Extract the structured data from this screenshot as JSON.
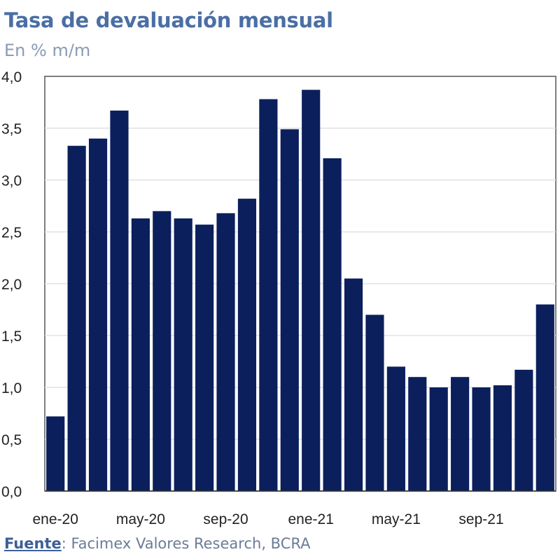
{
  "title": "Tasa de devaluación mensual",
  "subtitle": "En % m/m",
  "source": {
    "label": "Fuente",
    "text": ": Facimex Valores Research, BCRA"
  },
  "chart_data": {
    "type": "bar",
    "title": "Tasa de devaluación mensual",
    "ylabel": "",
    "xlabel": "",
    "ylim": [
      0,
      4
    ],
    "yticks": [
      "0,0",
      "0,5",
      "1,0",
      "1,5",
      "2,0",
      "2,5",
      "3,0",
      "3,5",
      "4,0"
    ],
    "grid": true,
    "bar_color": "#0b1f5c",
    "categories": [
      "ene-20",
      "feb-20",
      "mar-20",
      "abr-20",
      "may-20",
      "jun-20",
      "jul-20",
      "ago-20",
      "sep-20",
      "oct-20",
      "nov-20",
      "dic-20",
      "ene-21",
      "feb-21",
      "mar-21",
      "abr-21",
      "may-21",
      "jun-21",
      "jul-21",
      "ago-21",
      "sep-21",
      "oct-21",
      "nov-21",
      "dic-21"
    ],
    "x_tick_labels": [
      "ene-20",
      "may-20",
      "sep-20",
      "ene-21",
      "may-21",
      "sep-21"
    ],
    "values": [
      0.72,
      3.33,
      3.4,
      3.67,
      2.63,
      2.7,
      2.63,
      2.57,
      2.68,
      2.82,
      3.78,
      3.49,
      3.87,
      3.21,
      2.05,
      1.7,
      1.2,
      1.1,
      1.0,
      1.1,
      1.0,
      1.02,
      1.17,
      1.8
    ]
  }
}
